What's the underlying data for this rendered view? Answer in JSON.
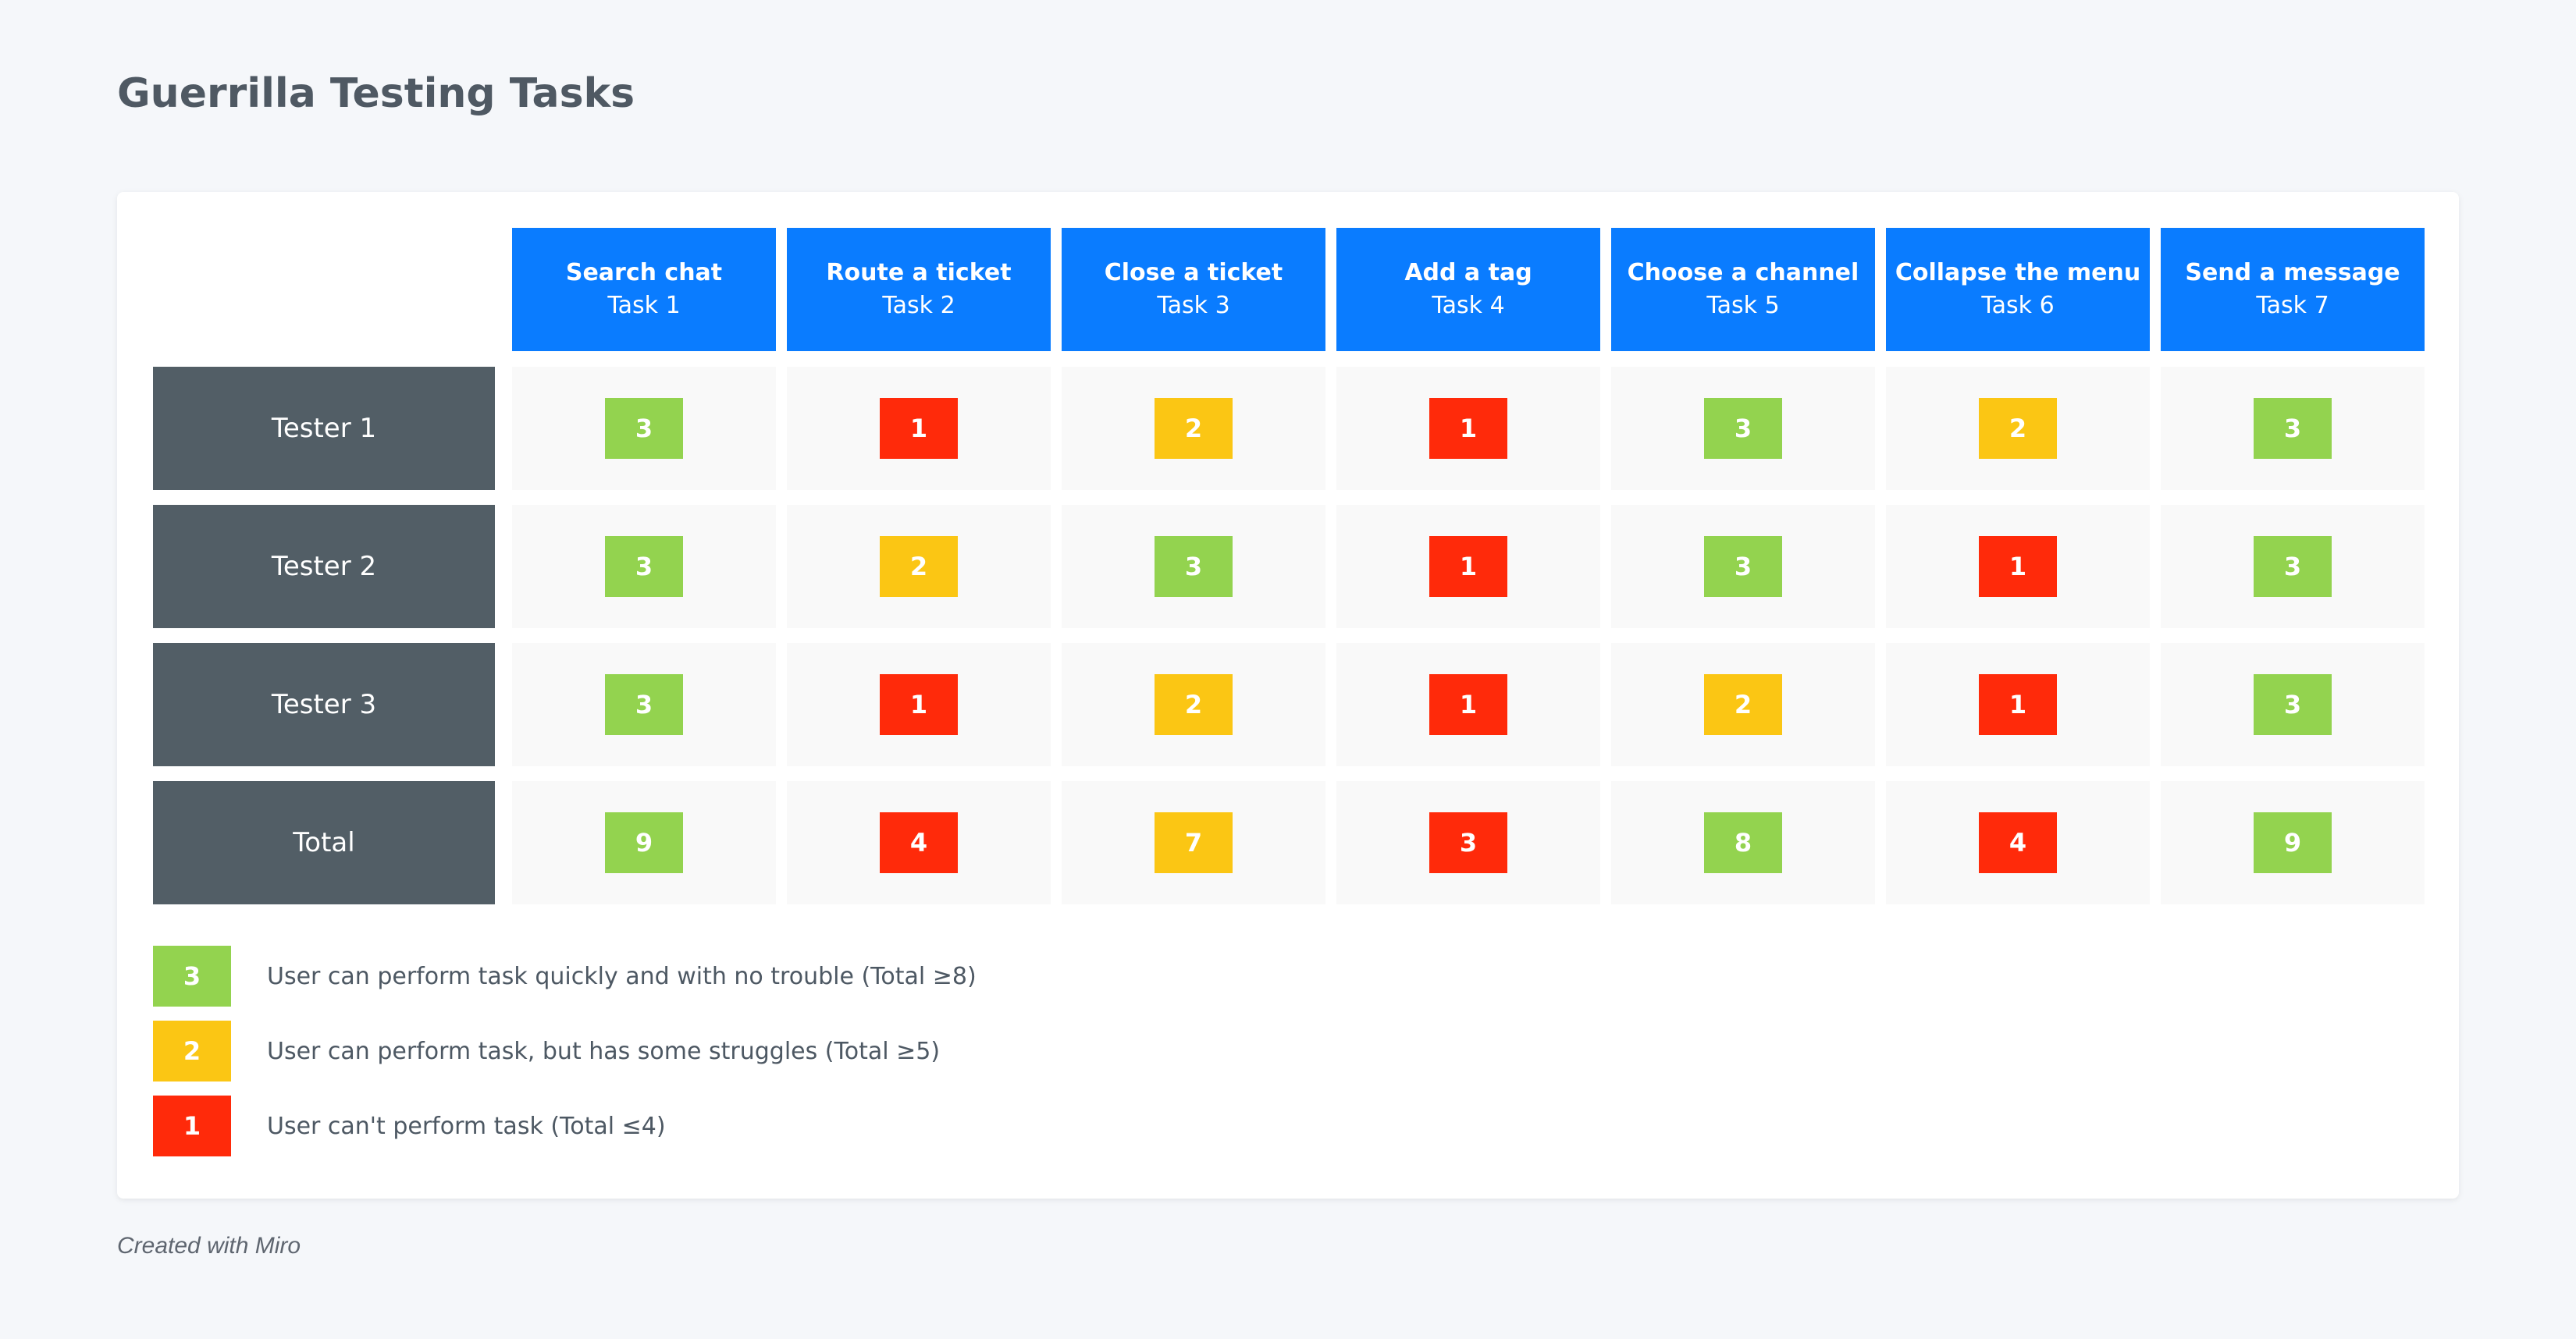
{
  "title": "Guerrilla Testing Tasks",
  "colors": {
    "good": "#93d34f",
    "medium": "#fbc614",
    "bad": "#ff2a0a",
    "header": "#0a7cff",
    "rowlabel": "#525e66"
  },
  "tasks": [
    {
      "name": "Search chat",
      "label": "Task 1"
    },
    {
      "name": "Route a ticket",
      "label": "Task 2"
    },
    {
      "name": "Close a ticket",
      "label": "Task 3"
    },
    {
      "name": "Add a tag",
      "label": "Task 4"
    },
    {
      "name": "Choose a channel",
      "label": "Task 5"
    },
    {
      "name": "Collapse the menu",
      "label": "Task 6"
    },
    {
      "name": "Send a message",
      "label": "Task 7"
    }
  ],
  "rows": [
    {
      "label": "Tester 1",
      "scores": [
        3,
        1,
        2,
        1,
        3,
        2,
        3
      ]
    },
    {
      "label": "Tester 2",
      "scores": [
        3,
        2,
        3,
        1,
        3,
        1,
        3
      ]
    },
    {
      "label": "Tester 3",
      "scores": [
        3,
        1,
        2,
        1,
        2,
        1,
        3
      ]
    },
    {
      "label": "Total",
      "scores": [
        9,
        4,
        7,
        3,
        8,
        4,
        9
      ],
      "is_total": true
    }
  ],
  "legend": [
    {
      "value": "3",
      "level": "good",
      "text": "User can perform task quickly and with no trouble (Total ≥8)"
    },
    {
      "value": "2",
      "level": "medium",
      "text": "User can perform task, but has some struggles (Total ≥5)"
    },
    {
      "value": "1",
      "level": "bad",
      "text": "User can't perform task (Total ≤4)"
    }
  ],
  "footer": "Created with Miro"
}
